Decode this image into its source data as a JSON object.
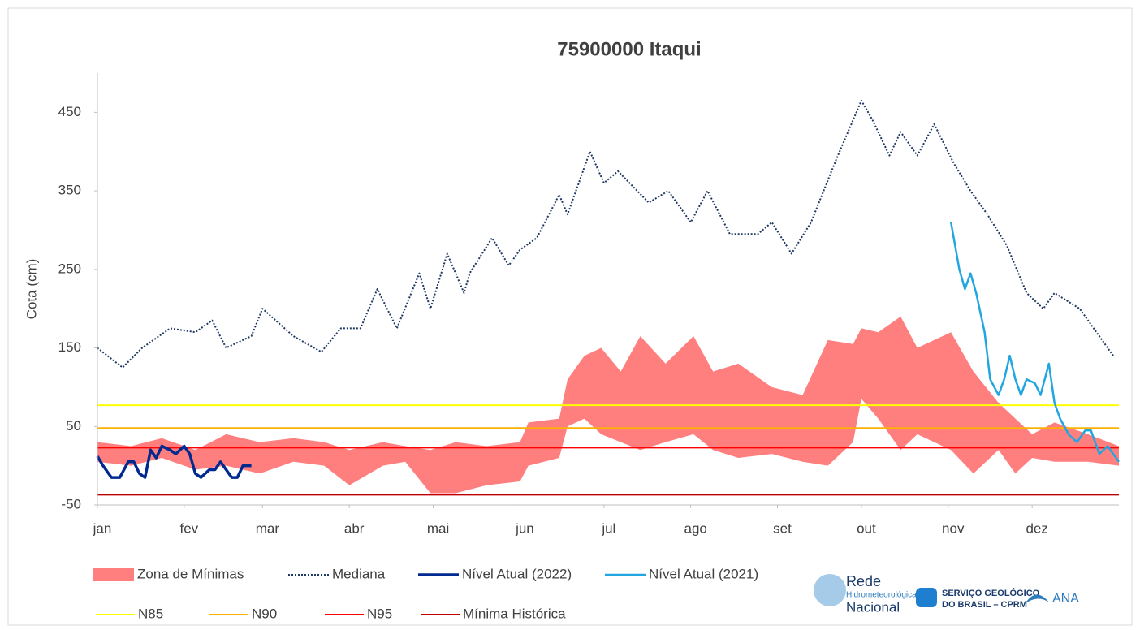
{
  "chart_data": {
    "type": "line",
    "title": "75900000 Itaqui",
    "ylabel": "Cota (cm)",
    "xlim": [
      1,
      366
    ],
    "ylim": [
      -50,
      500
    ],
    "yticks": [
      -50,
      50,
      150,
      250,
      350,
      450
    ],
    "xticks": [
      {
        "value": 1,
        "label": "jan"
      },
      {
        "value": 32,
        "label": "fev"
      },
      {
        "value": 60,
        "label": "mar"
      },
      {
        "value": 91,
        "label": "abr"
      },
      {
        "value": 121,
        "label": "mai"
      },
      {
        "value": 152,
        "label": "jun"
      },
      {
        "value": 182,
        "label": "jul"
      },
      {
        "value": 213,
        "label": "ago"
      },
      {
        "value": 244,
        "label": "set"
      },
      {
        "value": 274,
        "label": "out"
      },
      {
        "value": 305,
        "label": "nov"
      },
      {
        "value": 335,
        "label": "dez"
      }
    ],
    "series": [
      {
        "name": "Zona de Mínimas",
        "kind": "area",
        "color": "#ff7f7f",
        "x": [
          1,
          13,
          24,
          36,
          47,
          59,
          71,
          82,
          91,
          103,
          111,
          120,
          129,
          140,
          152,
          155,
          166,
          169,
          175,
          181,
          188,
          195,
          204,
          214,
          221,
          230,
          242,
          253,
          262,
          271,
          274,
          280,
          288,
          294,
          306,
          314,
          323,
          329,
          335,
          343,
          355,
          366
        ],
        "values": [
          30,
          25,
          35,
          20,
          40,
          30,
          35,
          30,
          20,
          30,
          25,
          20,
          30,
          25,
          30,
          55,
          60,
          110,
          140,
          150,
          120,
          165,
          130,
          165,
          120,
          130,
          100,
          90,
          160,
          155,
          175,
          170,
          190,
          150,
          170,
          120,
          80,
          60,
          40,
          55,
          40,
          25
        ],
        "low": [
          5,
          0,
          10,
          -5,
          0,
          -10,
          5,
          0,
          -25,
          0,
          5,
          -35,
          -35,
          -25,
          -20,
          0,
          10,
          50,
          60,
          40,
          30,
          20,
          30,
          40,
          20,
          10,
          15,
          5,
          0,
          30,
          85,
          60,
          20,
          40,
          20,
          -10,
          20,
          -10,
          10,
          5,
          5,
          0
        ]
      },
      {
        "name": "Mediana",
        "kind": "dotted",
        "color": "#1f3864",
        "x": [
          1,
          10,
          17,
          27,
          36,
          42,
          47,
          56,
          60,
          71,
          81,
          88,
          95,
          101,
          108,
          116,
          120,
          126,
          132,
          134,
          142,
          148,
          152,
          158,
          166,
          169,
          177,
          182,
          187,
          198,
          205,
          213,
          219,
          227,
          237,
          242,
          249,
          256,
          265,
          274,
          278,
          284,
          288,
          294,
          300,
          307,
          313,
          319,
          326,
          333,
          339,
          343,
          352,
          358,
          364
        ],
        "values": [
          150,
          125,
          150,
          175,
          170,
          185,
          150,
          165,
          200,
          165,
          145,
          175,
          175,
          225,
          175,
          245,
          200,
          270,
          220,
          245,
          290,
          255,
          275,
          290,
          345,
          320,
          400,
          360,
          375,
          335,
          350,
          310,
          350,
          295,
          295,
          310,
          270,
          310,
          390,
          465,
          440,
          395,
          425,
          395,
          435,
          385,
          350,
          320,
          280,
          220,
          200,
          220,
          200,
          170,
          140
        ]
      },
      {
        "name": "Nível Atual (2022)",
        "kind": "solid",
        "color": "#002a8f",
        "width": 3.5,
        "x": [
          1,
          3,
          6,
          9,
          12,
          14,
          16,
          18,
          20,
          22,
          24,
          27,
          29,
          32,
          34,
          36,
          38,
          41,
          43,
          45,
          47,
          49,
          51,
          53,
          56
        ],
        "values": [
          12,
          0,
          -15,
          -15,
          5,
          5,
          -10,
          -15,
          20,
          10,
          25,
          20,
          15,
          25,
          15,
          -10,
          -15,
          -5,
          -5,
          5,
          -5,
          -15,
          -15,
          0,
          0
        ]
      },
      {
        "name": "Nível Atual (2021)",
        "kind": "solid",
        "color": "#22a6e0",
        "width": 2.5,
        "x": [
          306,
          309,
          311,
          313,
          315,
          318,
          320,
          323,
          325,
          327,
          329,
          331,
          333,
          336,
          338,
          341,
          343,
          345,
          348,
          351,
          354,
          356,
          359,
          362,
          366
        ],
        "values": [
          310,
          250,
          225,
          245,
          220,
          170,
          110,
          90,
          110,
          140,
          110,
          90,
          110,
          105,
          90,
          130,
          80,
          60,
          40,
          30,
          45,
          45,
          15,
          25,
          5
        ]
      }
    ],
    "hlines": [
      {
        "name": "N85",
        "color": "#ffff00",
        "value": 77
      },
      {
        "name": "N90",
        "color": "#ffb000",
        "value": 48
      },
      {
        "name": "N95",
        "color": "#ff0000",
        "value": 23
      },
      {
        "name": "Mínima Histórica",
        "color": "#c00000",
        "value": -37
      }
    ]
  },
  "logos": {
    "rede": [
      "Rede",
      "Hidrometeorológica",
      "Nacional"
    ],
    "cprm": [
      "SERVIÇO GEOLÓGICO",
      "DO BRASIL – CPRM"
    ],
    "ana": "ANA"
  }
}
